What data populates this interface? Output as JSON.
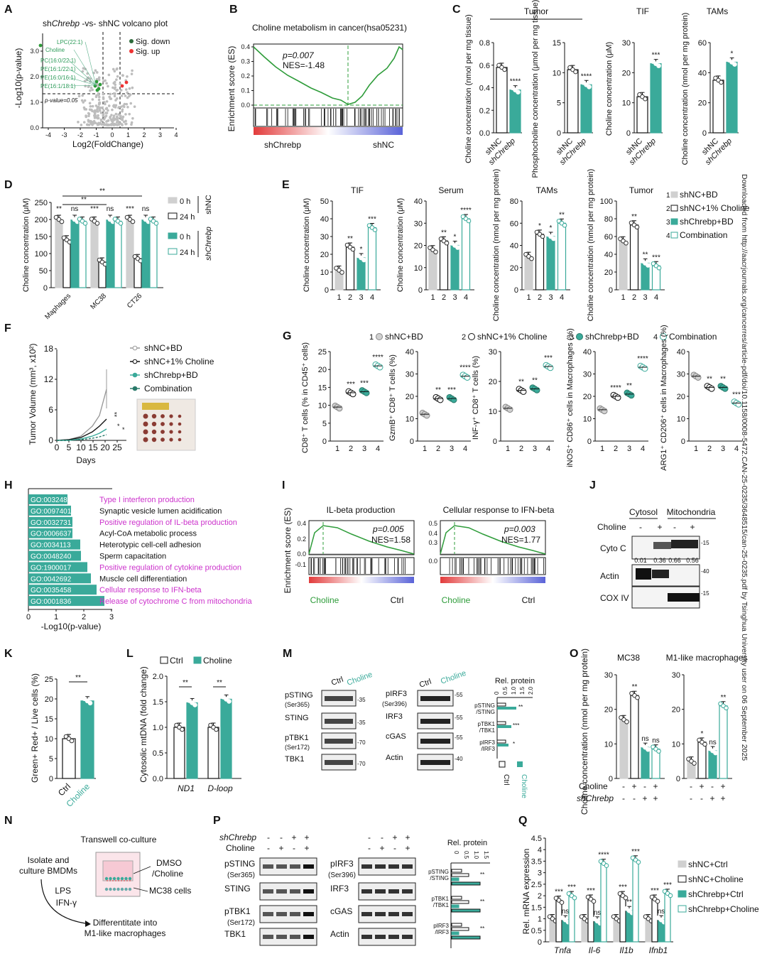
{
  "colors": {
    "teal": "#3aaa9a",
    "grey": "#cfcfcf",
    "green": "#2e9c3a",
    "dark": "#111111",
    "magenta": "#cc33cc",
    "pink": "#e06666",
    "lightgreen": "#6fbf8f"
  },
  "panels": {
    "A": {
      "letter": "A",
      "title_pre": "sh",
      "title_it": "Chrebp",
      "title_post": " -vs- shNC volcano plot",
      "legend": [
        "Sig. down",
        "Sig. up"
      ],
      "labels": [
        "LPC(22:1)",
        "Choline",
        "PC(16:0/22:1)",
        "PE(16:1/22:1)",
        "PE(16:0/16:1)",
        "PE(16:1/18:1)"
      ],
      "pline": "p-value=0.05",
      "xlabel": "Log2(FoldChange)",
      "ylabel": "-Log10(p-value)",
      "xticks": [
        "-4",
        "-3",
        "-2",
        "-1",
        "0",
        "1",
        "2",
        "3",
        "4"
      ],
      "yticks": [
        "0.0",
        "1.0",
        "2.0",
        "3.0"
      ]
    },
    "B": {
      "letter": "B",
      "title": "Choline metabolism in cancer(hsa05231)",
      "stat1": "p=0.007",
      "stat2": "NES=-1.48",
      "ylabel": "Enrichment score (ES)",
      "yticks": [
        "0.0",
        "0.1",
        "0.2",
        "0.3",
        "0.4"
      ],
      "left": "shChrebp",
      "right": "shNC"
    },
    "C": {
      "letter": "C",
      "group1": "Tumor",
      "group2": "TIF",
      "group3": "TAMs",
      "ylabels": [
        "Choline concentration (nmol per mg tissue)",
        "Phosphocholine concentration (μmol per mg tissue)",
        "Choline concentration (μM)",
        "Choline concentration (nmol per mg protein)"
      ],
      "xcats": [
        "shNC",
        "shChrebp"
      ],
      "sig": [
        "****",
        "****",
        "***",
        "*"
      ]
    },
    "D": {
      "letter": "D",
      "ylabel": "Choline concentration (μM)",
      "cats": [
        "Maphages",
        "MC38",
        "CT26"
      ],
      "legend": [
        "0 h",
        "24 h",
        "0 h",
        "24 h"
      ],
      "brk1": "shNC",
      "brk2": "shChrebp",
      "sig": [
        "**",
        "ns",
        "***",
        "ns",
        "***",
        "ns",
        "**",
        "**"
      ]
    },
    "E": {
      "letter": "E",
      "titles": [
        "TIF",
        "Serum",
        "TAMs",
        "Tumor"
      ],
      "ylabels": [
        "Choline concentration (μM)",
        "Choline concentration (μM)",
        "Choline concentration (nmol per mg protein)",
        "Choline concentration (nmol per mg protein)"
      ],
      "legend": [
        "1 shNC+BD",
        "2 shNC+1% Choline",
        "3 shChrebp+BD",
        "4 Combination"
      ],
      "xcats": [
        "1",
        "2",
        "3",
        "4"
      ]
    },
    "F": {
      "letter": "F",
      "ylabel": "Tumor Volume (mm³, x10²)",
      "xlabel": "Days",
      "legend": [
        "shNC+BD",
        "shNC+1% Choline",
        "shChrebp+BD",
        "Combination"
      ],
      "xticks": [
        "0",
        "5",
        "10",
        "15",
        "20",
        "25"
      ],
      "yticks": [
        "0",
        "6",
        "12",
        "18"
      ]
    },
    "G": {
      "letter": "G",
      "legend": [
        "1 shNC+BD",
        "2 shNC+1% Choline",
        "3 shChrebp+BD",
        "4 Combination"
      ],
      "ylabels": [
        "CD8⁺ T cells (% in CD45⁺ cells)",
        "GzmB⁺ CD8⁺ T cells (%)",
        "INF-γ⁺ CD8⁺ T cells (%)",
        "iNOS⁺ CD86⁺ cells in Macrophages (%)",
        "ARG1⁺ CD206⁺ cells in Macrophages (%)"
      ]
    },
    "H": {
      "letter": "H",
      "xlabel": "-Log10(p-value)",
      "xticks": [
        "0",
        "1",
        "2",
        "3"
      ],
      "terms": [
        {
          "id": "GO:0032480",
          "desc": "Type I interferon production",
          "hl": true
        },
        {
          "id": "GO:0097401",
          "desc": "Synaptic vesicle lumen acidification",
          "hl": false
        },
        {
          "id": "GO:0032731",
          "desc": "Positive regulation of IL-beta production",
          "hl": true
        },
        {
          "id": "GO:0006637",
          "desc": "Acyl-CoA metabolic process",
          "hl": false
        },
        {
          "id": "GO:0034113",
          "desc": "Heterotypic cell-cell adhesion",
          "hl": false
        },
        {
          "id": "GO:0048240",
          "desc": "Sperm capacitation",
          "hl": false
        },
        {
          "id": "GO:1900017",
          "desc": "Positive regulation of cytokine production",
          "hl": true
        },
        {
          "id": "GO:0042692",
          "desc": "Muscle cell differentiation",
          "hl": false
        },
        {
          "id": "GO:0035458",
          "desc": "Cellular response to IFN-beta",
          "hl": true
        },
        {
          "id": "GO:0001836",
          "desc": "Release of cytochrome C from mitochondria",
          "hl": true
        }
      ]
    },
    "I": {
      "letter": "I",
      "ylabel": "Enrichment score (ES)",
      "gsea": [
        {
          "title": "IL-beta production",
          "stat1": "p=0.005",
          "stat2": "NES=1.58",
          "left": "Choline",
          "right": "Ctrl"
        },
        {
          "title": "Cellular response to IFN-beta",
          "stat1": "p=0.003",
          "stat2": "NES=1.77",
          "left": "Choline",
          "right": "Ctrl"
        }
      ]
    },
    "J": {
      "letter": "J",
      "col1": "Cytosol",
      "col2": "Mitochondria",
      "choline": "Choline",
      "signs": [
        "-",
        "+",
        "-",
        "+"
      ],
      "rows": [
        "Cyto C",
        "Actin",
        "COX IV"
      ],
      "quant": [
        "0.01",
        "0.36",
        "0.66",
        "0.56"
      ],
      "mw": [
        "-15",
        "-40",
        "-15"
      ]
    },
    "K": {
      "letter": "K",
      "ylabel": "Green+ Red+ / Live cells (%)",
      "xcats": [
        "Ctrl",
        "Choline"
      ],
      "sig": "**"
    },
    "L": {
      "letter": "L",
      "legend": [
        "Ctrl",
        "Choline"
      ],
      "ylabel": "Cytosolic mtDNA (fold change)",
      "xcats": [
        "ND1",
        "D-loop"
      ],
      "sig": [
        "**",
        "**"
      ]
    },
    "M": {
      "letter": "M",
      "cols": [
        "Ctrl",
        "Choline"
      ],
      "left_rows": [
        "pSTING (Ser365)",
        "STING",
        "pTBK1 (Ser172)",
        "TBK1"
      ],
      "right_rows": [
        "pIRF3 (Ser396)",
        "IRF3",
        "cGAS",
        "Actin"
      ],
      "mw_left": [
        "-35",
        "-35",
        "-70",
        "-70"
      ],
      "mw_right": [
        "-55",
        "-55",
        "-55",
        "-40"
      ],
      "rel": "Rel. protein",
      "rel_rows": [
        "pSTING /STING",
        "pTBK1 /TBK1",
        "pIRF3 /IRF3"
      ],
      "rel_ticks": [
        "0",
        "0.5",
        "1.0",
        "1.5",
        "2.0"
      ]
    },
    "N": {
      "letter": "N",
      "title": "Transwell co-culture",
      "step1": "Isolate and culture BMDMs",
      "step2": "LPS",
      "step3": "IFN-γ",
      "step4": "Differentitate into M1-like macrophages",
      "lab1": "DMSO /Choline",
      "lab2": "MC38 cells"
    },
    "O": {
      "letter": "O",
      "title1": "MC38",
      "title2": "M1-like macrophages",
      "ylabel": "Choline concentration (nmol per mg protein)",
      "rowlabels": [
        "Choline",
        "shChrebp"
      ],
      "sig": [
        "**",
        "ns",
        "ns",
        "*",
        "ns",
        "**"
      ]
    },
    "P": {
      "letter": "P",
      "rowlabels": [
        "shChrebp",
        "Choline"
      ],
      "signs1": [
        "-",
        "-",
        "+",
        "+"
      ],
      "signs2": [
        "-",
        "+",
        "-",
        "+"
      ],
      "left_rows": [
        "pSTING (Ser365)",
        "STING",
        "pTBK1 (Ser172)",
        "TBK1"
      ],
      "right_rows": [
        "pIRF3 (Ser396)",
        "IRF3",
        "cGAS",
        "Actin"
      ],
      "rel": "Rel. protein",
      "rel_rows": [
        "pSTING /STING",
        "pTBK1 /TBK1",
        "pIRF3 /IRF3"
      ]
    },
    "Q": {
      "letter": "Q",
      "ylabel": "Rel. mRNA expression",
      "yticks": [
        "0",
        "0.5",
        "1",
        "1.5",
        "2",
        "2.5",
        "3",
        "3.5",
        "4",
        "4.5"
      ],
      "legend": [
        "shNC+Ctrl",
        "shNC+Choline",
        "shChrebp+Ctrl",
        "shChrebp+Choline"
      ],
      "genes": [
        "Tnfa",
        "Il-6",
        "Il1b",
        "Ifnb1"
      ]
    }
  },
  "chart_data": [
    {
      "type": "bar",
      "panel": "Q",
      "categories": [
        "Tnfa",
        "Il-6",
        "Il1b",
        "Ifnb1"
      ],
      "series": [
        {
          "name": "shNC+Ctrl",
          "values": [
            1.0,
            1.0,
            1.0,
            1.0
          ]
        },
        {
          "name": "shNC+Choline",
          "values": [
            1.8,
            1.85,
            2.0,
            1.85
          ]
        },
        {
          "name": "shChrebp+Ctrl",
          "values": [
            0.95,
            0.9,
            1.35,
            0.95
          ]
        },
        {
          "name": "shChrebp+Choline",
          "values": [
            2.0,
            3.4,
            3.55,
            2.1
          ]
        }
      ],
      "ylim": [
        0,
        4.5
      ],
      "ylabel": "Rel. mRNA expression",
      "sig": [
        [
          "***",
          "ns",
          "***"
        ],
        [
          "***",
          "ns",
          "****"
        ],
        [
          "***",
          "**",
          "***"
        ],
        [
          "***",
          "ns",
          "***"
        ]
      ]
    },
    {
      "type": "bar",
      "panel": "E",
      "title": "TIF",
      "categories": [
        "1",
        "2",
        "3",
        "4"
      ],
      "values": [
        11,
        24,
        18,
        35
      ],
      "ylim": [
        0,
        50
      ],
      "sig": [
        "",
        "**",
        "*",
        "***"
      ]
    },
    {
      "type": "bar",
      "panel": "E",
      "title": "Serum",
      "categories": [
        "1",
        "2",
        "3",
        "4"
      ],
      "values": [
        18,
        22,
        20,
        32
      ],
      "ylim": [
        0,
        40
      ],
      "sig": [
        "",
        "**",
        "*",
        "****"
      ]
    },
    {
      "type": "bar",
      "panel": "E",
      "title": "TAMs",
      "categories": [
        "1",
        "2",
        "3",
        "4"
      ],
      "values": [
        30,
        50,
        48,
        60
      ],
      "ylim": [
        0,
        80
      ],
      "sig": [
        "",
        "*",
        "*",
        "**"
      ]
    },
    {
      "type": "bar",
      "panel": "E",
      "title": "Tumor",
      "categories": [
        "1",
        "2",
        "3",
        "4"
      ],
      "values": [
        55,
        73,
        30,
        27
      ],
      "ylim": [
        0,
        100
      ],
      "sig": [
        "",
        "**",
        "**",
        "***"
      ]
    },
    {
      "type": "bar",
      "panel": "K",
      "categories": [
        "Ctrl",
        "Choline"
      ],
      "values": [
        10,
        19.5
      ],
      "ylim": [
        0,
        25
      ]
    },
    {
      "type": "bar",
      "panel": "L",
      "categories": [
        "ND1",
        "D-loop"
      ],
      "series": [
        {
          "name": "Ctrl",
          "values": [
            1.0,
            1.0
          ]
        },
        {
          "name": "Choline",
          "values": [
            1.48,
            1.55
          ]
        }
      ],
      "ylim": [
        0,
        2.0
      ]
    },
    {
      "type": "bar",
      "panel": "O",
      "title": "MC38",
      "categories": [
        "1",
        "2",
        "3",
        "4"
      ],
      "values": [
        17,
        24,
        9,
        8.5
      ],
      "ylim": [
        0,
        30
      ]
    },
    {
      "type": "bar",
      "panel": "O",
      "title": "M1-like macrophages",
      "categories": [
        "1",
        "2",
        "3",
        "4"
      ],
      "values": [
        5,
        10.5,
        8,
        21
      ],
      "ylim": [
        0,
        30
      ]
    }
  ],
  "watermark": "Downloaded from http://aacrjournals.org/cancerres/article-pdf/doi/10.1158/0008-5472.CAN-25-0235/3648515/can-25-0235.pdf by Tsinghua University user on 06 September 2025"
}
